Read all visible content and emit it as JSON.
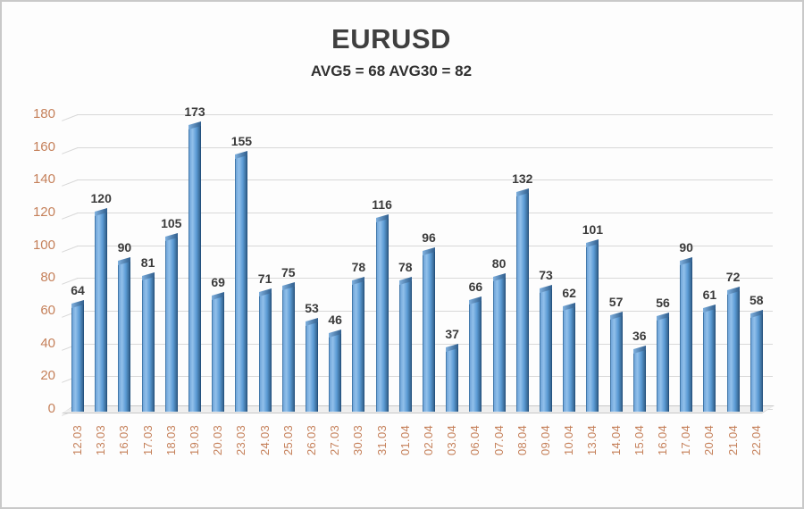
{
  "chart_data": {
    "type": "bar",
    "title": "EURUSD",
    "subtitle": "AVG5 = 68 AVG30 = 82",
    "categories": [
      "12.03",
      "13.03",
      "16.03",
      "17.03",
      "18.03",
      "19.03",
      "20.03",
      "23.03",
      "24.03",
      "25.03",
      "26.03",
      "27.03",
      "30.03",
      "31.03",
      "01.04",
      "02.04",
      "03.04",
      "06.04",
      "07.04",
      "08.04",
      "09.04",
      "10.04",
      "13.04",
      "14.04",
      "15.04",
      "16.04",
      "17.04",
      "20.04",
      "21.04",
      "22.04"
    ],
    "values": [
      64,
      120,
      90,
      81,
      105,
      173,
      69,
      155,
      71,
      75,
      53,
      46,
      78,
      116,
      78,
      96,
      37,
      66,
      80,
      132,
      73,
      62,
      101,
      57,
      36,
      56,
      90,
      61,
      72,
      58
    ],
    "xlabel": "",
    "ylabel": "",
    "ylim": [
      0,
      180
    ],
    "yticks": [
      0,
      20,
      40,
      60,
      80,
      100,
      120,
      140,
      160,
      180
    ],
    "grid": true,
    "legend": "none",
    "value_labels_shown": true,
    "colors": {
      "bar_fill_mid": "#5B9BD5",
      "bar_fill_light": "#92C0EA",
      "bar_fill_left": "#6FA5D9",
      "bar_fill_dark": "#35648F",
      "bar_edge_light": "#4379AB",
      "bar_edge_dark": "#24527F",
      "bar_cap_light": "#7FB0DE",
      "bar_cap_dark": "#2F5D8C",
      "axis_tick_label": "#C5805A",
      "value_label": "#3B3B3B",
      "title_text": "#3F3F3F",
      "subtitle_text": "#303030",
      "gridline": "#D8D8D8",
      "background": "#FFFFFF",
      "frame_border": "#C9C9C9"
    }
  }
}
